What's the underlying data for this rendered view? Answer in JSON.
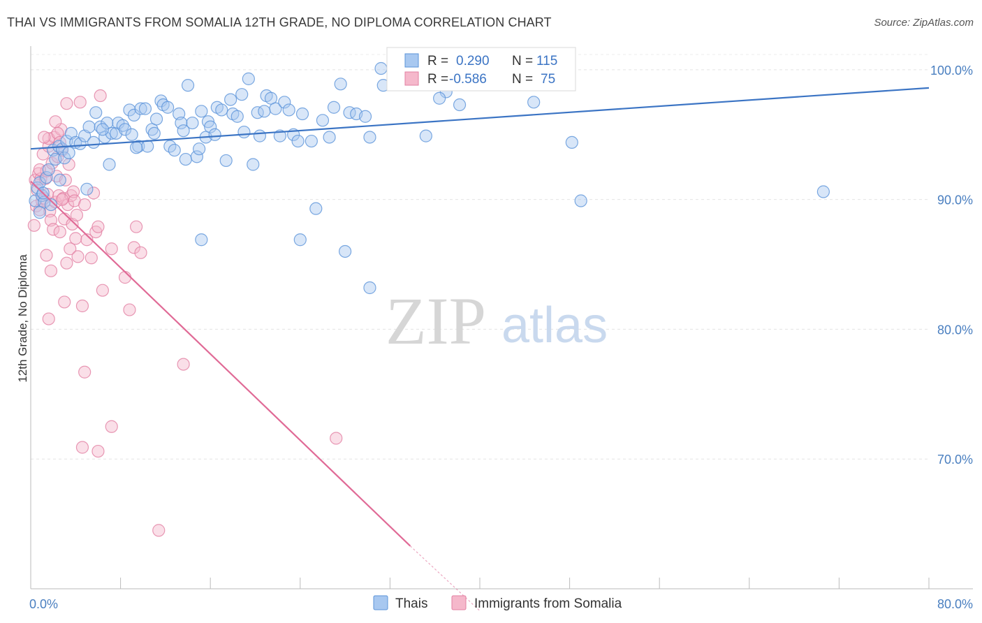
{
  "title": "THAI VS IMMIGRANTS FROM SOMALIA 12TH GRADE, NO DIPLOMA CORRELATION CHART",
  "source": "Source: ZipAtlas.com",
  "watermark": {
    "zip": "ZIP",
    "atlas": "atlas"
  },
  "legend": {
    "r_label": "R =",
    "n_label": "N =",
    "rows": [
      {
        "r": "0.290",
        "n": "115",
        "color": "#a8c8f0",
        "stroke": "#5b93d9"
      },
      {
        "r": "-0.586",
        "n": "75",
        "color": "#f5b8cb",
        "stroke": "#e27fa2"
      }
    ]
  },
  "bottom_legend": [
    "Thais",
    "Immigrants from Somalia"
  ],
  "chart_data": {
    "type": "scatter",
    "xlabel": "",
    "ylabel": "12th Grade, No Diploma",
    "xlim": [
      0,
      80
    ],
    "ylim": [
      60,
      101.5
    ],
    "x_tick_labels": [
      {
        "value": 0,
        "label": "0.0%"
      },
      {
        "value": 80,
        "label": "80.0%"
      }
    ],
    "y_tick_labels": [
      {
        "value": 100,
        "label": "100.0%"
      },
      {
        "value": 90,
        "label": "90.0%"
      },
      {
        "value": 80,
        "label": "80.0%"
      },
      {
        "value": 70,
        "label": "70.0%"
      }
    ],
    "x_minor_ticks": [
      8,
      16,
      24,
      32,
      40,
      48,
      56,
      64,
      72
    ],
    "grid": true,
    "series": [
      {
        "name": "Thais",
        "color": "#a8c8f0",
        "stroke": "#5b93d9",
        "trend": {
          "x": [
            0,
            80
          ],
          "y": [
            93.9,
            98.6
          ],
          "color": "#3b74c4"
        },
        "points": [
          [
            0.4,
            89.9
          ],
          [
            0.6,
            90.9
          ],
          [
            0.8,
            91.3
          ],
          [
            1.0,
            90.3
          ],
          [
            1.2,
            89.8
          ],
          [
            1.4,
            91.7
          ],
          [
            1.6,
            92.3
          ],
          [
            1.8,
            89.6
          ],
          [
            2.0,
            93.8
          ],
          [
            2.2,
            93.1
          ],
          [
            2.5,
            94.1
          ],
          [
            2.8,
            93.9
          ],
          [
            3.0,
            93.2
          ],
          [
            3.2,
            94.5
          ],
          [
            3.6,
            95.1
          ],
          [
            4.0,
            94.4
          ],
          [
            4.4,
            94.3
          ],
          [
            4.8,
            94.9
          ],
          [
            5.2,
            95.6
          ],
          [
            5.6,
            94.4
          ],
          [
            5.8,
            96.7
          ],
          [
            6.2,
            95.6
          ],
          [
            6.6,
            94.8
          ],
          [
            6.8,
            95.9
          ],
          [
            7.0,
            92.7
          ],
          [
            7.2,
            95.1
          ],
          [
            7.6,
            95.1
          ],
          [
            7.8,
            95.9
          ],
          [
            8.2,
            95.7
          ],
          [
            8.4,
            95.4
          ],
          [
            8.8,
            96.9
          ],
          [
            9.0,
            95.0
          ],
          [
            9.2,
            96.5
          ],
          [
            9.6,
            94.1
          ],
          [
            9.8,
            97.0
          ],
          [
            10.2,
            97.0
          ],
          [
            10.4,
            94.1
          ],
          [
            10.8,
            95.4
          ],
          [
            11.0,
            95.1
          ],
          [
            11.2,
            96.2
          ],
          [
            11.6,
            97.6
          ],
          [
            11.8,
            97.3
          ],
          [
            12.2,
            97.1
          ],
          [
            12.4,
            94.1
          ],
          [
            12.8,
            93.8
          ],
          [
            13.2,
            96.6
          ],
          [
            13.4,
            95.9
          ],
          [
            13.8,
            93.1
          ],
          [
            14.0,
            98.8
          ],
          [
            14.4,
            95.9
          ],
          [
            14.8,
            93.3
          ],
          [
            15.0,
            93.9
          ],
          [
            15.2,
            96.8
          ],
          [
            15.6,
            94.8
          ],
          [
            15.8,
            96.0
          ],
          [
            16.0,
            95.6
          ],
          [
            16.4,
            95.0
          ],
          [
            16.6,
            97.1
          ],
          [
            17.0,
            96.9
          ],
          [
            17.4,
            93.0
          ],
          [
            17.8,
            97.7
          ],
          [
            18.0,
            96.6
          ],
          [
            18.4,
            96.4
          ],
          [
            18.8,
            98.1
          ],
          [
            19.0,
            95.2
          ],
          [
            19.4,
            99.3
          ],
          [
            19.8,
            92.7
          ],
          [
            20.2,
            96.7
          ],
          [
            20.4,
            94.9
          ],
          [
            21.0,
            98.0
          ],
          [
            21.4,
            97.8
          ],
          [
            21.8,
            97.0
          ],
          [
            22.2,
            94.9
          ],
          [
            22.6,
            97.5
          ],
          [
            23.0,
            96.9
          ],
          [
            23.4,
            95.0
          ],
          [
            23.8,
            94.5
          ],
          [
            24.2,
            96.6
          ],
          [
            25.0,
            94.5
          ],
          [
            25.4,
            89.3
          ],
          [
            26.0,
            96.1
          ],
          [
            27.0,
            97.1
          ],
          [
            27.6,
            98.9
          ],
          [
            28.4,
            96.7
          ],
          [
            29.0,
            96.6
          ],
          [
            29.8,
            96.4
          ],
          [
            30.2,
            94.8
          ],
          [
            31.2,
            100.1
          ],
          [
            31.4,
            98.8
          ],
          [
            35.2,
            94.9
          ],
          [
            35.6,
            100.0
          ],
          [
            37.0,
            98.3
          ],
          [
            38.2,
            97.3
          ],
          [
            38.6,
            98.9
          ],
          [
            40.4,
            99.2
          ],
          [
            42.0,
            99.9
          ],
          [
            44.8,
            97.5
          ],
          [
            48.2,
            94.4
          ],
          [
            49.0,
            89.9
          ],
          [
            5.0,
            90.8
          ],
          [
            15.2,
            86.9
          ],
          [
            24.0,
            86.9
          ],
          [
            28.0,
            86.0
          ],
          [
            30.2,
            83.2
          ],
          [
            70.6,
            90.6
          ],
          [
            0.8,
            89.0
          ],
          [
            1.1,
            90.5
          ],
          [
            2.6,
            91.5
          ],
          [
            3.4,
            93.6
          ],
          [
            6.4,
            95.4
          ],
          [
            9.4,
            94.0
          ],
          [
            13.6,
            95.3
          ],
          [
            20.8,
            96.8
          ],
          [
            26.6,
            94.8
          ],
          [
            36.4,
            97.8
          ]
        ]
      },
      {
        "name": "Immigrants from Somalia",
        "color": "#f5b8cb",
        "stroke": "#e27fa2",
        "trend": {
          "x": [
            0,
            33.8
          ],
          "y": [
            91.4,
            63.3
          ],
          "dash_x": [
            33.8,
            40
          ],
          "dash_y": [
            63.3,
            58.3
          ],
          "color": "#e06a96"
        },
        "points": [
          [
            0.3,
            88.0
          ],
          [
            0.4,
            91.5
          ],
          [
            0.5,
            89.5
          ],
          [
            0.6,
            90.7
          ],
          [
            0.7,
            92.0
          ],
          [
            0.8,
            89.2
          ],
          [
            0.9,
            91.6
          ],
          [
            1.0,
            89.9
          ],
          [
            1.1,
            93.5
          ],
          [
            1.2,
            90.1
          ],
          [
            1.3,
            91.6
          ],
          [
            1.4,
            92.2
          ],
          [
            1.5,
            90.4
          ],
          [
            1.6,
            94.1
          ],
          [
            1.7,
            89.1
          ],
          [
            1.8,
            88.4
          ],
          [
            1.9,
            92.8
          ],
          [
            2.0,
            87.7
          ],
          [
            2.1,
            94.8
          ],
          [
            2.2,
            89.8
          ],
          [
            2.3,
            91.8
          ],
          [
            2.4,
            93.3
          ],
          [
            2.5,
            90.3
          ],
          [
            2.6,
            87.5
          ],
          [
            2.7,
            95.4
          ],
          [
            2.8,
            93.8
          ],
          [
            2.9,
            90.1
          ],
          [
            3.0,
            88.5
          ],
          [
            3.1,
            91.5
          ],
          [
            3.2,
            97.4
          ],
          [
            3.3,
            89.6
          ],
          [
            3.4,
            92.7
          ],
          [
            3.5,
            86.2
          ],
          [
            3.6,
            90.3
          ],
          [
            3.7,
            88.1
          ],
          [
            3.8,
            90.6
          ],
          [
            3.9,
            89.9
          ],
          [
            4.0,
            87.0
          ],
          [
            4.1,
            88.8
          ],
          [
            4.2,
            85.6
          ],
          [
            4.4,
            97.5
          ],
          [
            4.6,
            81.8
          ],
          [
            4.8,
            89.6
          ],
          [
            5.0,
            86.9
          ],
          [
            5.4,
            85.5
          ],
          [
            5.6,
            90.5
          ],
          [
            5.8,
            87.5
          ],
          [
            6.0,
            87.9
          ],
          [
            1.4,
            85.7
          ],
          [
            1.6,
            94.7
          ],
          [
            1.8,
            84.5
          ],
          [
            2.2,
            96.0
          ],
          [
            2.4,
            95.1
          ],
          [
            2.6,
            94.4
          ],
          [
            2.8,
            90.0
          ],
          [
            3.0,
            82.1
          ],
          [
            3.2,
            85.1
          ],
          [
            6.2,
            98.0
          ],
          [
            6.4,
            83.0
          ],
          [
            7.2,
            86.2
          ],
          [
            8.4,
            84.0
          ],
          [
            8.8,
            81.5
          ],
          [
            9.2,
            86.3
          ],
          [
            9.4,
            87.9
          ],
          [
            9.8,
            85.9
          ],
          [
            4.8,
            76.7
          ],
          [
            7.2,
            72.5
          ],
          [
            4.6,
            70.9
          ],
          [
            6.0,
            70.6
          ],
          [
            13.6,
            77.3
          ],
          [
            11.4,
            64.5
          ],
          [
            27.2,
            71.6
          ],
          [
            1.6,
            80.8
          ],
          [
            0.8,
            92.3
          ],
          [
            1.2,
            94.8
          ]
        ]
      }
    ]
  }
}
